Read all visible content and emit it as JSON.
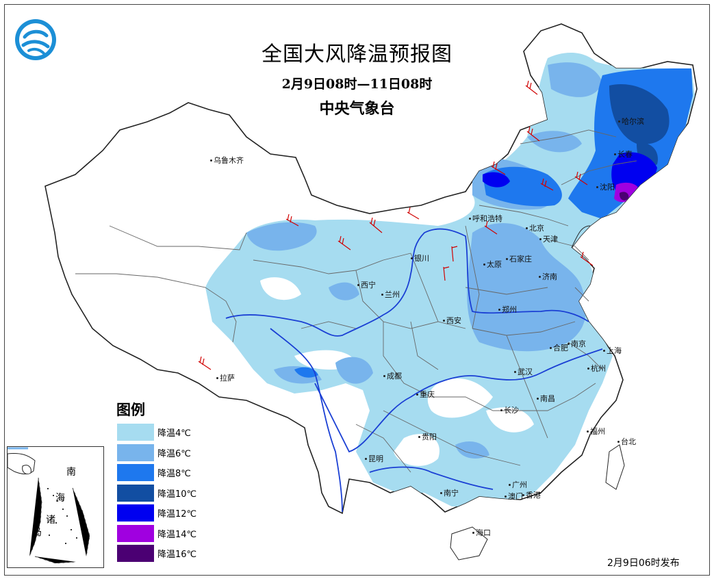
{
  "title": "全国大风降温预报图",
  "period": "2月9日08时—11日08时",
  "issuer": "中央气象台",
  "issue_time": "2月9日06时发布",
  "legend": {
    "title": "图例",
    "items": [
      {
        "label": "降温4℃",
        "color": "#a6dcf0"
      },
      {
        "label": "降温6℃",
        "color": "#78b4ec"
      },
      {
        "label": "降温8℃",
        "color": "#1e78ee"
      },
      {
        "label": "降温10℃",
        "color": "#124ea2"
      },
      {
        "label": "降温12℃",
        "color": "#0000f0"
      },
      {
        "label": "降温14℃",
        "color": "#a000e0"
      },
      {
        "label": "降温16℃",
        "color": "#4b0073"
      }
    ]
  },
  "inset": {
    "labels": [
      "南",
      "海",
      "诸",
      "岛"
    ]
  },
  "cities": [
    {
      "name": "乌鲁木齐"
    },
    {
      "name": "哈尔滨"
    },
    {
      "name": "长春"
    },
    {
      "name": "沈阳"
    },
    {
      "name": "呼和浩特"
    },
    {
      "name": "北京"
    },
    {
      "name": "天津"
    },
    {
      "name": "石家庄"
    },
    {
      "name": "太原"
    },
    {
      "name": "银川"
    },
    {
      "name": "济南"
    },
    {
      "name": "西宁"
    },
    {
      "name": "兰州"
    },
    {
      "name": "郑州"
    },
    {
      "name": "西安"
    },
    {
      "name": "合肥"
    },
    {
      "name": "南京"
    },
    {
      "name": "上海"
    },
    {
      "name": "拉萨"
    },
    {
      "name": "成都"
    },
    {
      "name": "武汉"
    },
    {
      "name": "杭州"
    },
    {
      "name": "重庆"
    },
    {
      "name": "南昌"
    },
    {
      "name": "长沙"
    },
    {
      "name": "贵阳"
    },
    {
      "name": "福州"
    },
    {
      "name": "台北"
    },
    {
      "name": "昆明"
    },
    {
      "name": "广州"
    },
    {
      "name": "南宁"
    },
    {
      "name": "澳门"
    },
    {
      "name": "香港"
    },
    {
      "name": "海口"
    }
  ]
}
